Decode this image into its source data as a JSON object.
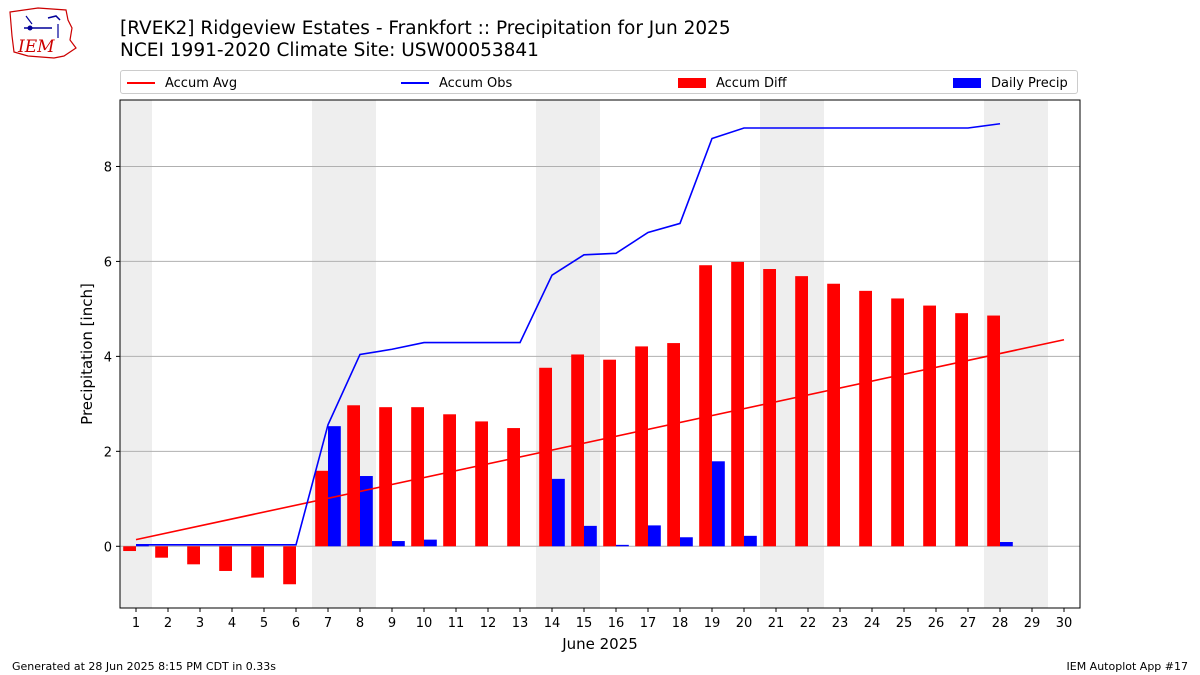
{
  "logo": {
    "text": "IEM"
  },
  "header": {
    "title_line1": "[RVEK2] Ridgeview Estates - Frankfort :: Precipitation for Jun 2025",
    "title_line2": "NCEI 1991-2020 Climate Site: USW00053841"
  },
  "legend": {
    "items": [
      {
        "label": "Accum Avg",
        "color": "#ff0000",
        "kind": "line"
      },
      {
        "label": "Accum Obs",
        "color": "#0000ff",
        "kind": "line"
      },
      {
        "label": "Accum Diff",
        "color": "#ff0000",
        "kind": "bar"
      },
      {
        "label": "Daily Precip",
        "color": "#0000ff",
        "kind": "bar"
      }
    ]
  },
  "chart_data": {
    "type": "bar",
    "xlabel": "June 2025",
    "ylabel": "Precipitation [inch]",
    "xlim": [
      0.5,
      30.5
    ],
    "ylim": [
      -1.3,
      9.4
    ],
    "yticks": [
      0,
      2,
      4,
      6,
      8
    ],
    "xticks": [
      1,
      2,
      3,
      4,
      5,
      6,
      7,
      8,
      9,
      10,
      11,
      12,
      13,
      14,
      15,
      16,
      17,
      18,
      19,
      20,
      21,
      22,
      23,
      24,
      25,
      26,
      27,
      28,
      29,
      30
    ],
    "grid": "horizontal",
    "legend_position": "top",
    "weekend_shading_days": [
      1,
      7,
      8,
      14,
      15,
      21,
      22,
      28,
      29
    ],
    "series": [
      {
        "name": "Accum Avg",
        "kind": "line",
        "color": "#ff0000",
        "x": [
          1,
          30
        ],
        "values": [
          0.14,
          4.35
        ]
      },
      {
        "name": "Accum Obs",
        "kind": "line",
        "color": "#0000ff",
        "x": [
          1,
          2,
          3,
          4,
          5,
          6,
          7,
          8,
          9,
          10,
          11,
          12,
          13,
          14,
          15,
          16,
          17,
          18,
          19,
          20,
          21,
          22,
          23,
          24,
          25,
          26,
          27,
          28
        ],
        "values": [
          0.03,
          0.03,
          0.03,
          0.03,
          0.03,
          0.03,
          2.56,
          4.04,
          4.15,
          4.29,
          4.29,
          4.29,
          4.29,
          5.71,
          6.14,
          6.17,
          6.61,
          6.8,
          8.59,
          8.81,
          8.81,
          8.81,
          8.81,
          8.81,
          8.81,
          8.81,
          8.81,
          8.9
        ]
      },
      {
        "name": "Accum Diff",
        "kind": "bar",
        "color": "#ff0000",
        "x": [
          1,
          2,
          3,
          4,
          5,
          6,
          7,
          8,
          9,
          10,
          11,
          12,
          13,
          14,
          15,
          16,
          17,
          18,
          19,
          20,
          21,
          22,
          23,
          24,
          25,
          26,
          27,
          28
        ],
        "values": [
          -0.1,
          -0.24,
          -0.38,
          -0.52,
          -0.66,
          -0.8,
          1.59,
          2.97,
          2.93,
          2.93,
          2.78,
          2.63,
          2.49,
          3.76,
          4.04,
          3.93,
          4.21,
          4.28,
          5.92,
          5.99,
          5.84,
          5.69,
          5.53,
          5.38,
          5.22,
          5.07,
          4.91,
          4.86
        ]
      },
      {
        "name": "Daily Precip",
        "kind": "bar",
        "color": "#0000ff",
        "x": [
          1,
          2,
          3,
          4,
          5,
          6,
          7,
          8,
          9,
          10,
          11,
          12,
          13,
          14,
          15,
          16,
          17,
          18,
          19,
          20,
          21,
          22,
          23,
          24,
          25,
          26,
          27,
          28
        ],
        "values": [
          0.03,
          0,
          0,
          0,
          0,
          0,
          2.53,
          1.48,
          0.11,
          0.14,
          0,
          0,
          0,
          1.42,
          0.43,
          0.03,
          0.44,
          0.19,
          1.79,
          0.22,
          0,
          0,
          0,
          0,
          0,
          0,
          0,
          0.09
        ]
      }
    ]
  },
  "footer": {
    "left": "Generated at 28 Jun 2025 8:15 PM CDT in 0.33s",
    "right": "IEM Autoplot App #17"
  }
}
